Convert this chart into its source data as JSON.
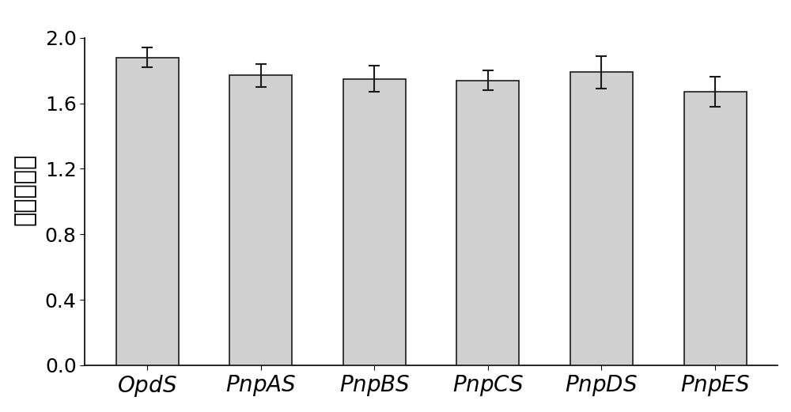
{
  "categories": [
    "OpdS",
    "PnpAS",
    "PnpBS",
    "PnpCS",
    "PnpDS",
    "PnpES"
  ],
  "values": [
    1.88,
    1.77,
    1.75,
    1.74,
    1.79,
    1.67
  ],
  "errors": [
    0.06,
    0.07,
    0.08,
    0.06,
    0.1,
    0.09
  ],
  "bar_color": "#d0d0d0",
  "bar_edgecolor": "#1a1a1a",
  "ylabel": "相对表达量",
  "ylim": [
    0,
    2.15
  ],
  "yticks": [
    0,
    0.4,
    0.8,
    1.2,
    1.6,
    2.0
  ],
  "background_color": "#ffffff",
  "bar_width": 0.55,
  "error_capsize": 5,
  "error_linewidth": 1.5,
  "error_capthick": 1.5
}
